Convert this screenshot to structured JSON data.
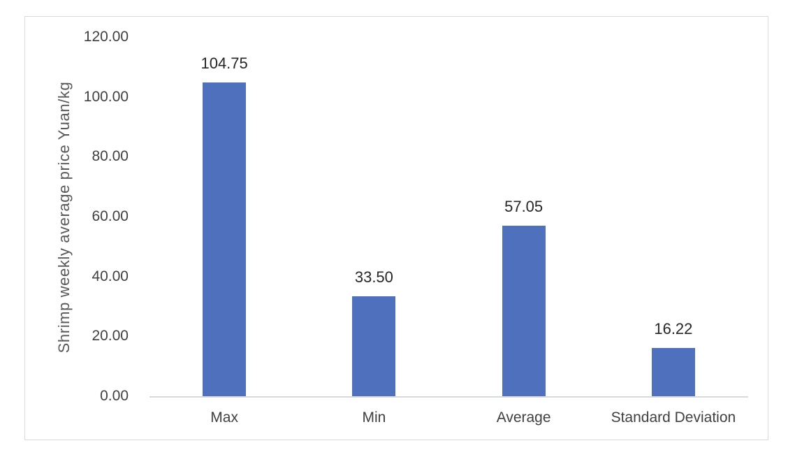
{
  "chart_data": {
    "type": "bar",
    "categories": [
      "Max",
      "Min",
      "Average",
      "Standard Deviation"
    ],
    "values": [
      104.75,
      33.5,
      57.05,
      16.22
    ],
    "data_labels": [
      "104.75",
      "33.50",
      "57.05",
      "16.22"
    ],
    "title": "",
    "xlabel": "",
    "ylabel": "Shrimp weekly average price Yuan/kg",
    "ylim": [
      0,
      120
    ],
    "ytick_step": 20,
    "ytick_labels": [
      "0.00",
      "20.00",
      "40.00",
      "60.00",
      "80.00",
      "100.00",
      "120.00"
    ],
    "grid": false,
    "legend": "none",
    "bar_color": "#4E70BD",
    "axis_line_color": "#D9D9D9",
    "frame_border_color": "#D9D9D9",
    "tick_label_color": "#404040",
    "axis_title_color": "#595959",
    "data_label_color": "#262626"
  }
}
